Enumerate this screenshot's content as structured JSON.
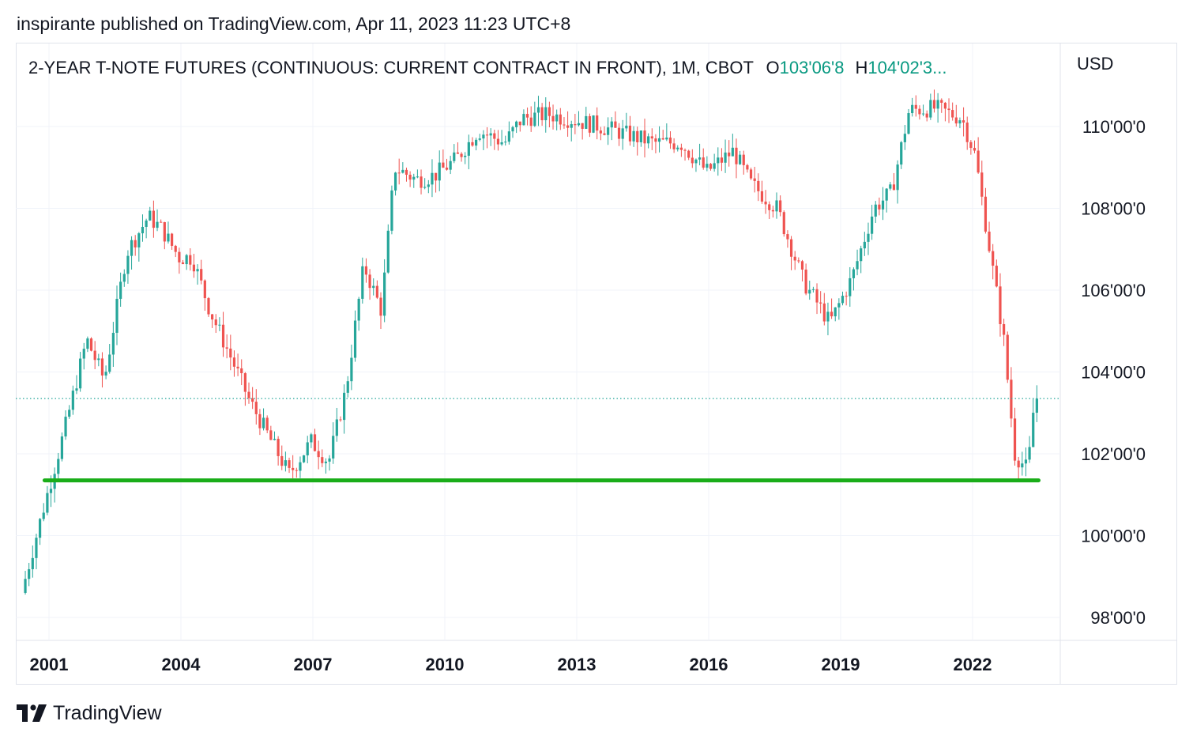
{
  "header": {
    "publish_line": "inspirante published on TradingView.com, Apr 11, 2023 11:23 UTC+8"
  },
  "chart_data": {
    "type": "candlestick",
    "title": "2-YEAR T-NOTE FUTURES (CONTINUOUS: CURRENT CONTRACT IN FRONT), 1M, CBOT",
    "ohlc_labels": {
      "open_label": "O",
      "open_value": "103'06'8",
      "high_label": "H",
      "high_value": "104'02'3..."
    },
    "currency": "USD",
    "y_ticks": [
      {
        "label": "110'00'0",
        "value": 110
      },
      {
        "label": "108'00'0",
        "value": 108
      },
      {
        "label": "106'00'0",
        "value": 106
      },
      {
        "label": "104'00'0",
        "value": 104
      },
      {
        "label": "102'00'0",
        "value": 102
      },
      {
        "label": "100'00'0",
        "value": 100
      },
      {
        "label": "98'00'0",
        "value": 98
      }
    ],
    "x_ticks": [
      {
        "label": "2001",
        "year": 2001
      },
      {
        "label": "2004",
        "year": 2004
      },
      {
        "label": "2007",
        "year": 2007
      },
      {
        "label": "2010",
        "year": 2010
      },
      {
        "label": "2013",
        "year": 2013
      },
      {
        "label": "2016",
        "year": 2016
      },
      {
        "label": "2019",
        "year": 2019
      },
      {
        "label": "2022",
        "year": 2022
      }
    ],
    "ylim": [
      97.5,
      112.5
    ],
    "xlim": [
      2000.2,
      2024.8
    ],
    "last_price": 103.35,
    "support_line": {
      "value": 101.35,
      "x_start": 2000.9,
      "x_end": 2023.5,
      "color": "#1aad19"
    },
    "colors": {
      "up": "#26a69a",
      "down": "#ef5350",
      "grid": "#f0f3fa",
      "last_price_line": "#26a69a"
    },
    "path_points": [
      [
        2000.42,
        98.6
      ],
      [
        2000.9,
        100.6
      ],
      [
        2001.4,
        102.6
      ],
      [
        2001.9,
        104.8
      ],
      [
        2002.3,
        103.8
      ],
      [
        2002.8,
        106.9
      ],
      [
        2003.3,
        107.8
      ],
      [
        2003.6,
        107.5
      ],
      [
        2004.0,
        106.8
      ],
      [
        2004.3,
        106.8
      ],
      [
        2004.7,
        105.5
      ],
      [
        2005.2,
        104.3
      ],
      [
        2005.6,
        103.3
      ],
      [
        2006.0,
        102.5
      ],
      [
        2006.5,
        101.5
      ],
      [
        2007.0,
        102.3
      ],
      [
        2007.4,
        101.8
      ],
      [
        2007.8,
        103.6
      ],
      [
        2008.2,
        106.6
      ],
      [
        2008.6,
        105.5
      ],
      [
        2008.9,
        109.0
      ],
      [
        2009.4,
        108.7
      ],
      [
        2009.8,
        108.8
      ],
      [
        2010.3,
        109.2
      ],
      [
        2010.8,
        109.9
      ],
      [
        2011.4,
        109.6
      ],
      [
        2011.8,
        110.2
      ],
      [
        2012.4,
        110.3
      ],
      [
        2013.0,
        110.15
      ],
      [
        2013.6,
        110.0
      ],
      [
        2014.2,
        109.8
      ],
      [
        2014.8,
        109.6
      ],
      [
        2015.4,
        109.6
      ],
      [
        2016.0,
        108.9
      ],
      [
        2016.6,
        109.4
      ],
      [
        2017.0,
        108.6
      ],
      [
        2017.6,
        108.0
      ],
      [
        2018.2,
        106.2
      ],
      [
        2018.8,
        105.2
      ],
      [
        2019.3,
        106.3
      ],
      [
        2019.8,
        108.0
      ],
      [
        2020.2,
        108.4
      ],
      [
        2020.6,
        110.4
      ],
      [
        2021.2,
        110.45
      ],
      [
        2021.8,
        110.2
      ],
      [
        2022.1,
        109.3
      ],
      [
        2022.4,
        107.2
      ],
      [
        2022.75,
        104.8
      ],
      [
        2023.0,
        102.0
      ],
      [
        2023.3,
        101.6
      ],
      [
        2023.45,
        103.35
      ]
    ]
  },
  "footer": {
    "logo_text": "TradingView"
  }
}
